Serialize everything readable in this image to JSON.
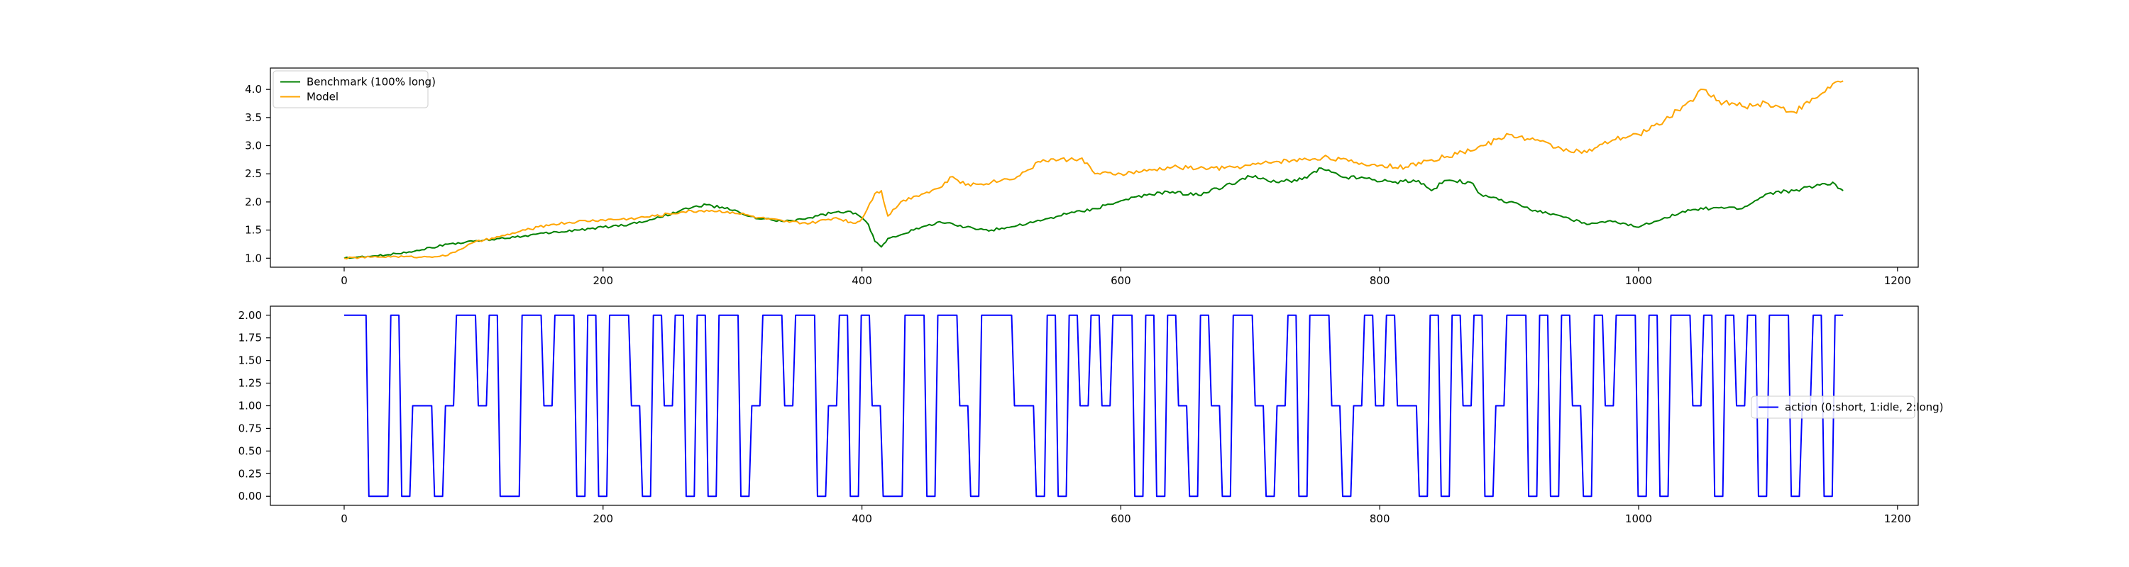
{
  "chart_data": [
    {
      "type": "line",
      "title": "",
      "xlabel": "",
      "ylabel": "",
      "xlim": [
        -57,
        1216
      ],
      "ylim": [
        0.84,
        4.38
      ],
      "xticks": [
        0,
        200,
        400,
        600,
        800,
        1000,
        1200
      ],
      "yticks": [
        1.0,
        1.5,
        2.0,
        2.5,
        3.0,
        3.5,
        4.0
      ],
      "xtick_labels": [
        "0",
        "200",
        "400",
        "600",
        "800",
        "1000",
        "1200"
      ],
      "ytick_labels": [
        "1.0",
        "1.5",
        "2.0",
        "2.5",
        "3.0",
        "3.5",
        "4.0"
      ],
      "grid": false,
      "legend_position": "top-left",
      "series": [
        {
          "name": "Benchmark (100% long)",
          "color": "#008000",
          "x": [
            0,
            20,
            40,
            60,
            80,
            100,
            120,
            140,
            160,
            180,
            200,
            220,
            240,
            260,
            280,
            300,
            320,
            340,
            360,
            380,
            395,
            405,
            410,
            415,
            420,
            440,
            460,
            480,
            500,
            520,
            540,
            560,
            580,
            600,
            620,
            640,
            660,
            680,
            700,
            720,
            740,
            755,
            770,
            790,
            810,
            830,
            840,
            850,
            870,
            880,
            900,
            920,
            940,
            960,
            980,
            1000,
            1020,
            1040,
            1060,
            1080,
            1100,
            1120,
            1140,
            1150,
            1158
          ],
          "y": [
            1.0,
            1.03,
            1.08,
            1.15,
            1.25,
            1.3,
            1.35,
            1.4,
            1.45,
            1.5,
            1.55,
            1.6,
            1.7,
            1.85,
            1.95,
            1.85,
            1.7,
            1.65,
            1.72,
            1.82,
            1.8,
            1.6,
            1.3,
            1.2,
            1.35,
            1.5,
            1.65,
            1.55,
            1.5,
            1.58,
            1.68,
            1.8,
            1.88,
            2.02,
            2.12,
            2.18,
            2.12,
            2.28,
            2.45,
            2.35,
            2.4,
            2.6,
            2.45,
            2.42,
            2.35,
            2.38,
            2.2,
            2.38,
            2.35,
            2.1,
            2.0,
            1.85,
            1.75,
            1.6,
            1.65,
            1.55,
            1.72,
            1.85,
            1.9,
            1.88,
            2.15,
            2.2,
            2.3,
            2.35,
            2.2
          ]
        },
        {
          "name": "Model",
          "color": "#ffa500",
          "x": [
            0,
            20,
            40,
            60,
            80,
            100,
            120,
            140,
            160,
            180,
            200,
            220,
            240,
            260,
            280,
            300,
            320,
            340,
            360,
            380,
            395,
            400,
            410,
            415,
            420,
            430,
            440,
            460,
            470,
            480,
            500,
            520,
            540,
            560,
            570,
            580,
            600,
            620,
            640,
            660,
            680,
            700,
            720,
            740,
            760,
            780,
            800,
            820,
            840,
            860,
            880,
            900,
            920,
            940,
            960,
            980,
            1000,
            1020,
            1040,
            1050,
            1060,
            1080,
            1100,
            1120,
            1140,
            1150,
            1158
          ],
          "y": [
            1.0,
            1.02,
            1.03,
            1.02,
            1.05,
            1.28,
            1.38,
            1.5,
            1.6,
            1.65,
            1.68,
            1.7,
            1.75,
            1.82,
            1.85,
            1.82,
            1.72,
            1.65,
            1.62,
            1.72,
            1.62,
            1.7,
            2.15,
            2.2,
            1.75,
            2.0,
            2.1,
            2.25,
            2.45,
            2.3,
            2.35,
            2.45,
            2.75,
            2.75,
            2.78,
            2.5,
            2.5,
            2.55,
            2.62,
            2.6,
            2.6,
            2.65,
            2.72,
            2.75,
            2.8,
            2.7,
            2.65,
            2.62,
            2.75,
            2.85,
            3.0,
            3.2,
            3.1,
            2.95,
            2.88,
            3.1,
            3.2,
            3.45,
            3.8,
            4.0,
            3.8,
            3.7,
            3.75,
            3.6,
            3.9,
            4.1,
            4.15
          ]
        }
      ]
    },
    {
      "type": "line",
      "title": "",
      "xlabel": "",
      "ylabel": "",
      "xlim": [
        -57,
        1216
      ],
      "ylim": [
        -0.1,
        2.1
      ],
      "xticks": [
        0,
        200,
        400,
        600,
        800,
        1000,
        1200
      ],
      "yticks": [
        0,
        0.25,
        0.5,
        0.75,
        1.0,
        1.25,
        1.5,
        1.75,
        2.0
      ],
      "xtick_labels": [
        "0",
        "200",
        "400",
        "600",
        "800",
        "1000",
        "1200"
      ],
      "ytick_labels": [
        "0.00",
        "0.25",
        "0.50",
        "0.75",
        "1.00",
        "1.25",
        "1.50",
        "1.75",
        "2.00"
      ],
      "grid": false,
      "legend_position": "center-right",
      "series": [
        {
          "name": "action (0:short, 1:idle, 2:long)",
          "color": "#0000ff",
          "step_values": [
            2,
            2,
            0,
            0,
            2,
            0,
            1,
            1,
            0,
            1,
            2,
            2,
            1,
            2,
            0,
            0,
            2,
            2,
            1,
            2,
            2,
            0,
            2,
            0,
            2,
            2,
            1,
            0,
            2,
            1,
            2,
            0,
            2,
            0,
            2,
            2,
            0,
            1,
            2,
            2,
            1,
            2,
            2,
            0,
            1,
            2,
            0,
            2,
            1,
            0,
            0,
            2,
            2,
            0,
            2,
            2,
            1,
            0,
            2,
            2,
            2,
            1,
            1,
            0,
            2,
            0,
            2,
            1,
            2,
            1,
            2,
            2,
            0,
            2,
            0,
            2,
            1,
            0,
            2,
            1,
            0,
            2,
            2,
            1,
            0,
            1,
            2,
            0,
            2,
            2,
            1,
            0,
            1,
            2,
            1,
            2,
            1,
            1,
            0,
            2,
            0,
            2,
            1,
            2,
            0,
            1,
            2,
            2,
            0,
            2,
            0,
            2,
            1,
            0,
            2,
            1,
            2,
            2,
            0,
            2,
            0,
            2,
            2,
            1,
            2,
            0,
            2,
            1,
            2,
            0,
            2,
            2,
            0,
            1,
            2,
            0,
            2
          ]
        }
      ]
    }
  ]
}
